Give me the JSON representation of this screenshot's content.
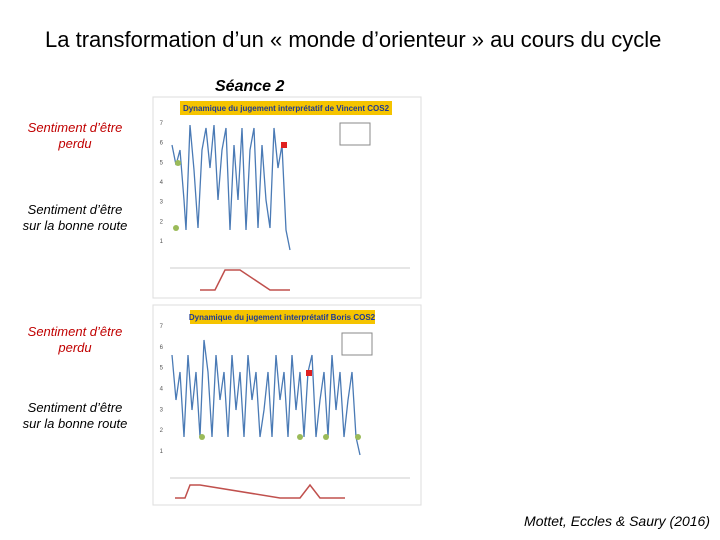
{
  "header": {
    "title": "La transformation d’un « monde d’orienteur » au cours du cycle",
    "session": "Séance 2"
  },
  "labels": [
    "Sentiment d’être perdu",
    "Sentiment d’être sur la bonne route",
    "Sentiment d’être perdu",
    "Sentiment d’être sur la bonne route"
  ],
  "charts": [
    {
      "title": "Dynamique du jugement interprétatif de Vincent COS2",
      "yticks": [
        "7",
        "6",
        "5",
        "4",
        "3",
        "2",
        "1"
      ]
    },
    {
      "title": "Dynamique du jugement interprétatif Boris COS2",
      "yticks": [
        "7",
        "6",
        "5",
        "4",
        "3",
        "2",
        "1"
      ]
    }
  ],
  "citation": "Mottet, Eccles & Saury (2016)"
}
